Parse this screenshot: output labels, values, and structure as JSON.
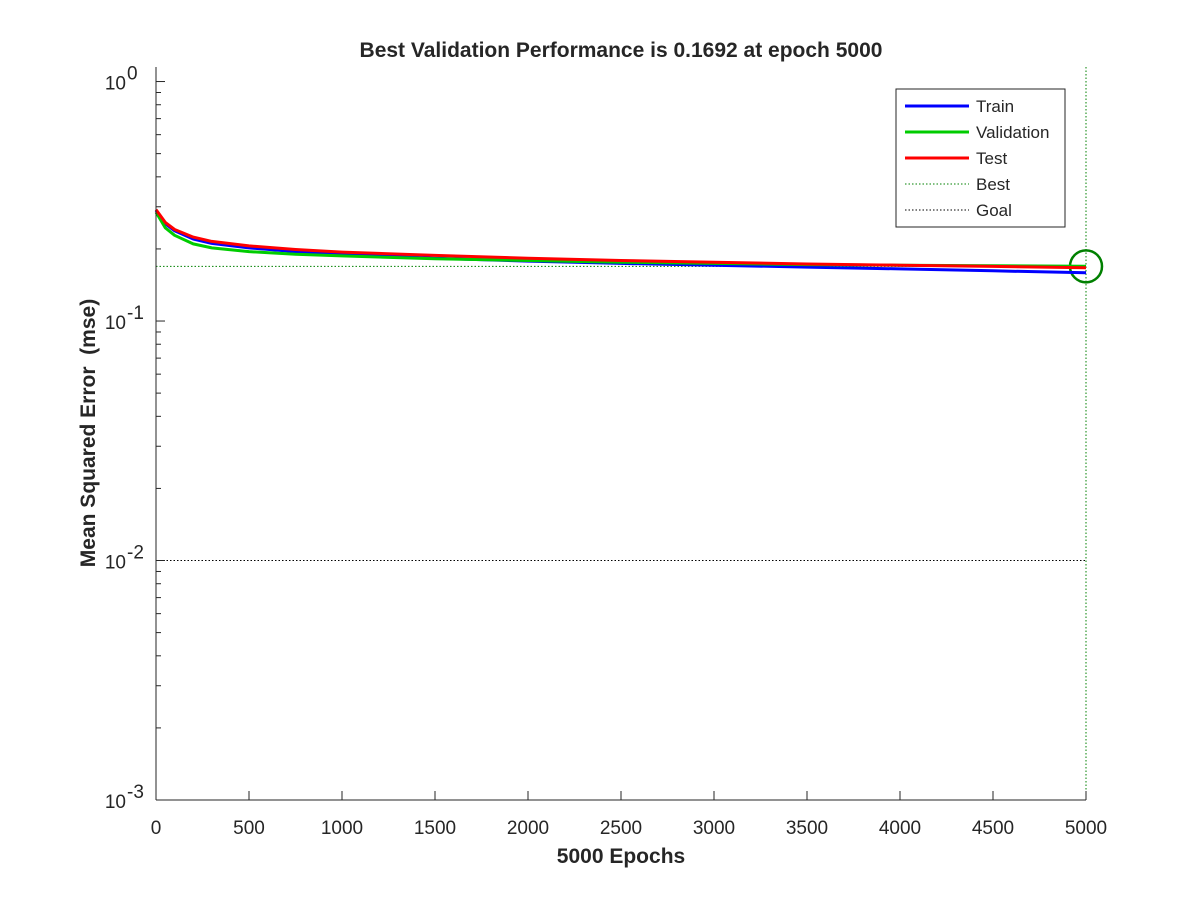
{
  "chart_data": {
    "type": "line",
    "title": "Best Validation Performance is 0.1692 at epoch 5000",
    "xlabel": "5000 Epochs",
    "ylabel": "Mean Squared Error  (mse)",
    "xlim": [
      0,
      5000
    ],
    "ylim": [
      0.001,
      1.15
    ],
    "yscale": "log",
    "grid": false,
    "legend_position": "top-right",
    "xticks": [
      0,
      500,
      1000,
      1500,
      2000,
      2500,
      3000,
      3500,
      4000,
      4500,
      5000
    ],
    "yticks": [
      {
        "value": 0.001,
        "base": "10",
        "exp": "-3"
      },
      {
        "value": 0.01,
        "base": "10",
        "exp": "-2"
      },
      {
        "value": 0.1,
        "base": "10",
        "exp": "-1"
      },
      {
        "value": 1,
        "base": "10",
        "exp": "0"
      }
    ],
    "series": [
      {
        "name": "Train",
        "color": "#0000ff",
        "style": "solid",
        "x": [
          0,
          50,
          100,
          200,
          300,
          500,
          750,
          1000,
          1500,
          2000,
          2500,
          3000,
          3500,
          4000,
          4500,
          5000
        ],
        "values": [
          0.29,
          0.255,
          0.238,
          0.22,
          0.211,
          0.202,
          0.195,
          0.19,
          0.183,
          0.178,
          0.174,
          0.171,
          0.168,
          0.165,
          0.162,
          0.159
        ]
      },
      {
        "name": "Validation",
        "color": "#00cc00",
        "style": "solid",
        "x": [
          0,
          50,
          100,
          200,
          300,
          500,
          750,
          1000,
          1500,
          2000,
          2500,
          3000,
          3500,
          4000,
          4500,
          5000
        ],
        "values": [
          0.285,
          0.245,
          0.228,
          0.21,
          0.202,
          0.195,
          0.19,
          0.187,
          0.182,
          0.179,
          0.176,
          0.174,
          0.172,
          0.171,
          0.17,
          0.1692
        ]
      },
      {
        "name": "Test",
        "color": "#ff0000",
        "style": "solid",
        "x": [
          0,
          50,
          100,
          200,
          300,
          500,
          750,
          1000,
          1500,
          2000,
          2500,
          3000,
          3500,
          4000,
          4500,
          5000
        ],
        "values": [
          0.292,
          0.258,
          0.241,
          0.224,
          0.215,
          0.206,
          0.199,
          0.194,
          0.188,
          0.183,
          0.179,
          0.176,
          0.173,
          0.171,
          0.169,
          0.167
        ]
      }
    ],
    "best": {
      "name": "Best",
      "epoch": 5000,
      "value": 0.1692,
      "color": "#008000"
    },
    "goal": {
      "name": "Goal",
      "value": 0.01,
      "color": "#000000"
    }
  }
}
